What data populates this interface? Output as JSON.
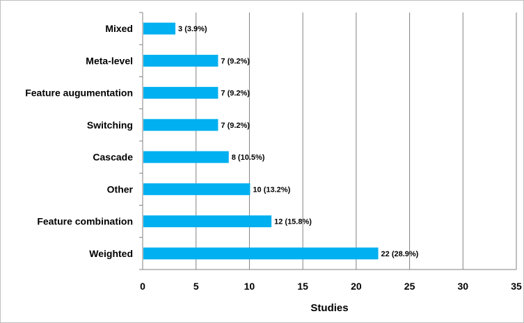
{
  "chart_data": {
    "type": "bar",
    "orientation": "horizontal",
    "categories": [
      "Mixed",
      "Meta-level",
      "Feature augumentation",
      "Switching",
      "Cascade",
      "Other",
      "Feature combination",
      "Weighted"
    ],
    "values": [
      3,
      7,
      7,
      7,
      8,
      10,
      12,
      22
    ],
    "data_labels": [
      "3 (3.9%)",
      "7 (9.2%)",
      "7 (9.2%)",
      "7 (9.2%)",
      "8 (10.5%)",
      "10 (13.2%)",
      "12 (15.8%)",
      "22 (28.9%)"
    ],
    "title": "",
    "xlabel": "Studies",
    "ylabel": "",
    "xlim": [
      0,
      35
    ],
    "xticks": [
      "0",
      "5",
      "10",
      "15",
      "20",
      "25",
      "30",
      "35"
    ],
    "grid": "vertical",
    "bar_color": "#00b0f0",
    "grid_color": "#808080"
  }
}
